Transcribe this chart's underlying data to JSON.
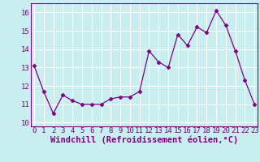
{
  "x": [
    0,
    1,
    2,
    3,
    4,
    5,
    6,
    7,
    8,
    9,
    10,
    11,
    12,
    13,
    14,
    15,
    16,
    17,
    18,
    19,
    20,
    21,
    22,
    23
  ],
  "y": [
    13.1,
    11.7,
    10.5,
    11.5,
    11.2,
    11.0,
    11.0,
    11.0,
    11.3,
    11.4,
    11.4,
    11.7,
    13.9,
    13.3,
    13.0,
    14.8,
    14.2,
    15.2,
    14.9,
    16.1,
    15.3,
    13.9,
    12.3,
    11.0
  ],
  "line_color": "#800080",
  "marker": "D",
  "marker_size": 2.5,
  "bg_color": "#c8eef0",
  "grid_color": "#ffffff",
  "xlabel": "Windchill (Refroidissement éolien,°C)",
  "xlabel_fontsize": 7.5,
  "tick_fontsize": 6.5,
  "ylim": [
    9.8,
    16.5
  ],
  "yticks": [
    10,
    11,
    12,
    13,
    14,
    15,
    16
  ],
  "xticks": [
    0,
    1,
    2,
    3,
    4,
    5,
    6,
    7,
    8,
    9,
    10,
    11,
    12,
    13,
    14,
    15,
    16,
    17,
    18,
    19,
    20,
    21,
    22,
    23
  ],
  "xlim": [
    -0.3,
    23.3
  ]
}
